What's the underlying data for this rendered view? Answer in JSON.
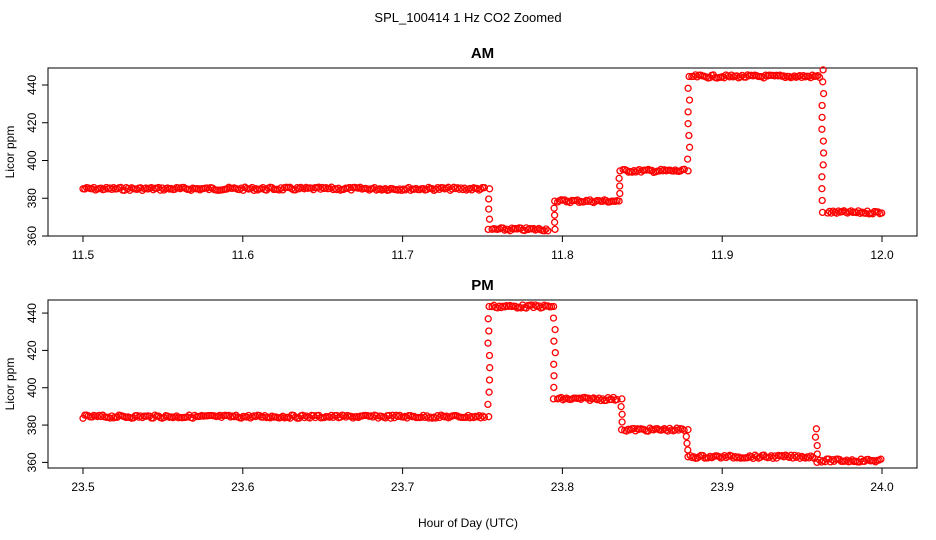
{
  "figure": {
    "title": "SPL_100414  1 Hz CO2 Zoomed",
    "xlabel": "Hour of Day (UTC)",
    "colors": {
      "points": "#ff0000",
      "axes": "#000000"
    }
  },
  "chart_data": [
    {
      "type": "scatter",
      "title": "AM",
      "xlabel": "",
      "ylabel": "Licor ppm",
      "xlim": [
        11.5,
        12.0
      ],
      "ylim": [
        360,
        449
      ],
      "xticks": [
        "11.5",
        "11.6",
        "11.7",
        "11.8",
        "11.9",
        "12.0"
      ],
      "yticks": [
        "360",
        "380",
        "400",
        "420",
        "440"
      ],
      "grid": false,
      "series": [
        {
          "color": "#ff0000",
          "segments": [
            {
              "x": [
                11.5,
                11.752
              ],
              "y": 385
            },
            {
              "x": [
                11.756,
                11.792
              ],
              "y": 363.5
            },
            {
              "x": [
                11.797,
                11.835
              ],
              "y": 378.5
            },
            {
              "x": [
                11.838,
                11.877
              ],
              "y": 394.5
            },
            {
              "x": [
                11.881,
                11.961
              ],
              "y": 444.5
            },
            {
              "x": [
                11.966,
                12.0
              ],
              "y": 372.5
            }
          ],
          "transitions": [
            {
              "x": 11.754,
              "y": [
                385,
                363.5
              ]
            },
            {
              "x": 11.795,
              "y": [
                363.5,
                378.5
              ]
            },
            {
              "x": 11.836,
              "y": [
                378.5,
                394.5
              ]
            },
            {
              "x": 11.879,
              "y": [
                394.5,
                444.5
              ]
            },
            {
              "x": 11.963,
              "y": [
                448,
                372.5
              ]
            }
          ]
        }
      ]
    },
    {
      "type": "scatter",
      "title": "PM",
      "xlabel": "",
      "ylabel": "Licor ppm",
      "xlim": [
        23.5,
        24.0
      ],
      "ylim": [
        357,
        447
      ],
      "xticks": [
        "23.5",
        "23.6",
        "23.7",
        "23.8",
        "23.9",
        "24.0"
      ],
      "yticks": [
        "360",
        "380",
        "400",
        "420",
        "440"
      ],
      "grid": false,
      "series": [
        {
          "color": "#ff0000",
          "segments": [
            {
              "x": [
                23.5,
                23.752
              ],
              "y": 384.5
            },
            {
              "x": [
                23.756,
                23.794
              ],
              "y": 443.5
            },
            {
              "x": [
                23.797,
                23.835
              ],
              "y": 394
            },
            {
              "x": [
                23.839,
                23.877
              ],
              "y": 377.5
            },
            {
              "x": [
                23.88,
                23.958
              ],
              "y": 363
            },
            {
              "x": [
                23.961,
                24.0
              ],
              "y": 361
            }
          ],
          "transitions": [
            {
              "x": 23.754,
              "y": [
                384.5,
                443.5
              ]
            },
            {
              "x": 23.795,
              "y": [
                443.5,
                394
              ]
            },
            {
              "x": 23.837,
              "y": [
                394,
                377.5
              ]
            },
            {
              "x": 23.878,
              "y": [
                377.5,
                363
              ]
            },
            {
              "x": 23.959,
              "y": [
                378,
                360
              ]
            }
          ]
        }
      ]
    }
  ]
}
